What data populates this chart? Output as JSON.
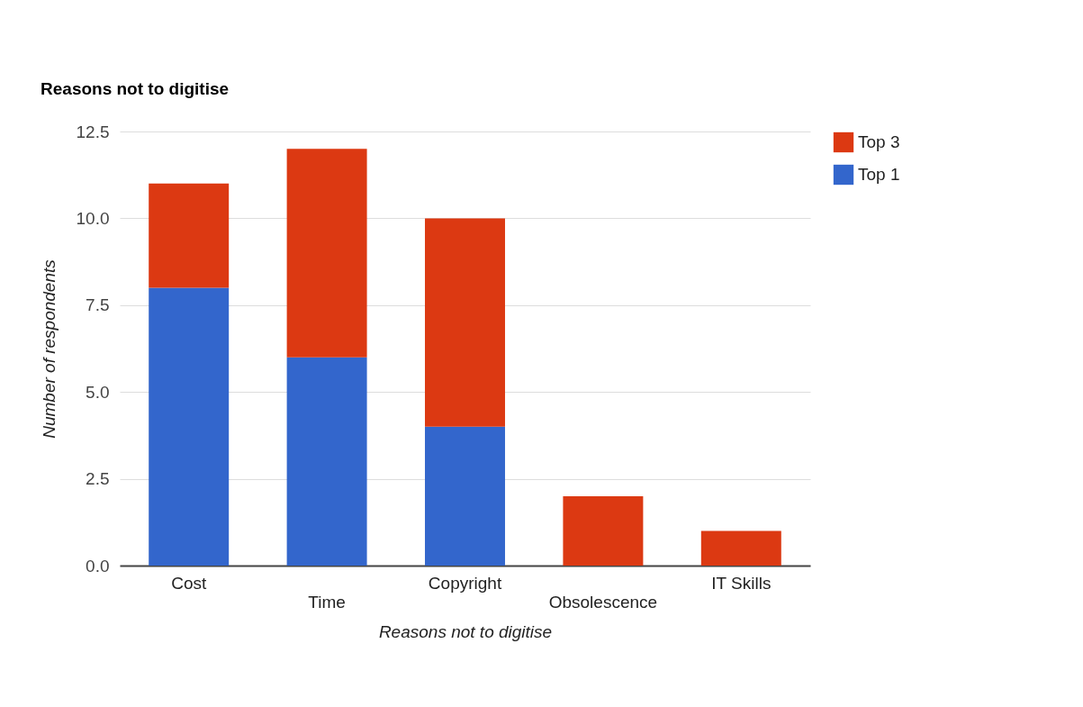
{
  "chart_data": {
    "type": "bar",
    "title": "Reasons not to digitise",
    "xlabel": "Reasons not to digitise",
    "ylabel": "Number of respondents",
    "categories": [
      "Cost",
      "Time",
      "Copyright",
      "Obsolescence",
      "IT Skills"
    ],
    "stacked": true,
    "series": [
      {
        "name": "Top 1",
        "color": "#3366cc",
        "values": [
          8,
          6,
          4,
          0,
          0
        ]
      },
      {
        "name": "Top 3",
        "color": "#dc3912",
        "values": [
          3,
          6,
          6,
          2,
          1
        ]
      }
    ],
    "ylim": [
      0,
      12.5
    ],
    "yticks": [
      {
        "value": 0,
        "label": "0.0"
      },
      2.5,
      {
        "value": 5,
        "label": "5.0"
      },
      7.5,
      {
        "value": 10,
        "label": "10.0"
      },
      12.5
    ],
    "grid": "y",
    "legend": "top right"
  }
}
